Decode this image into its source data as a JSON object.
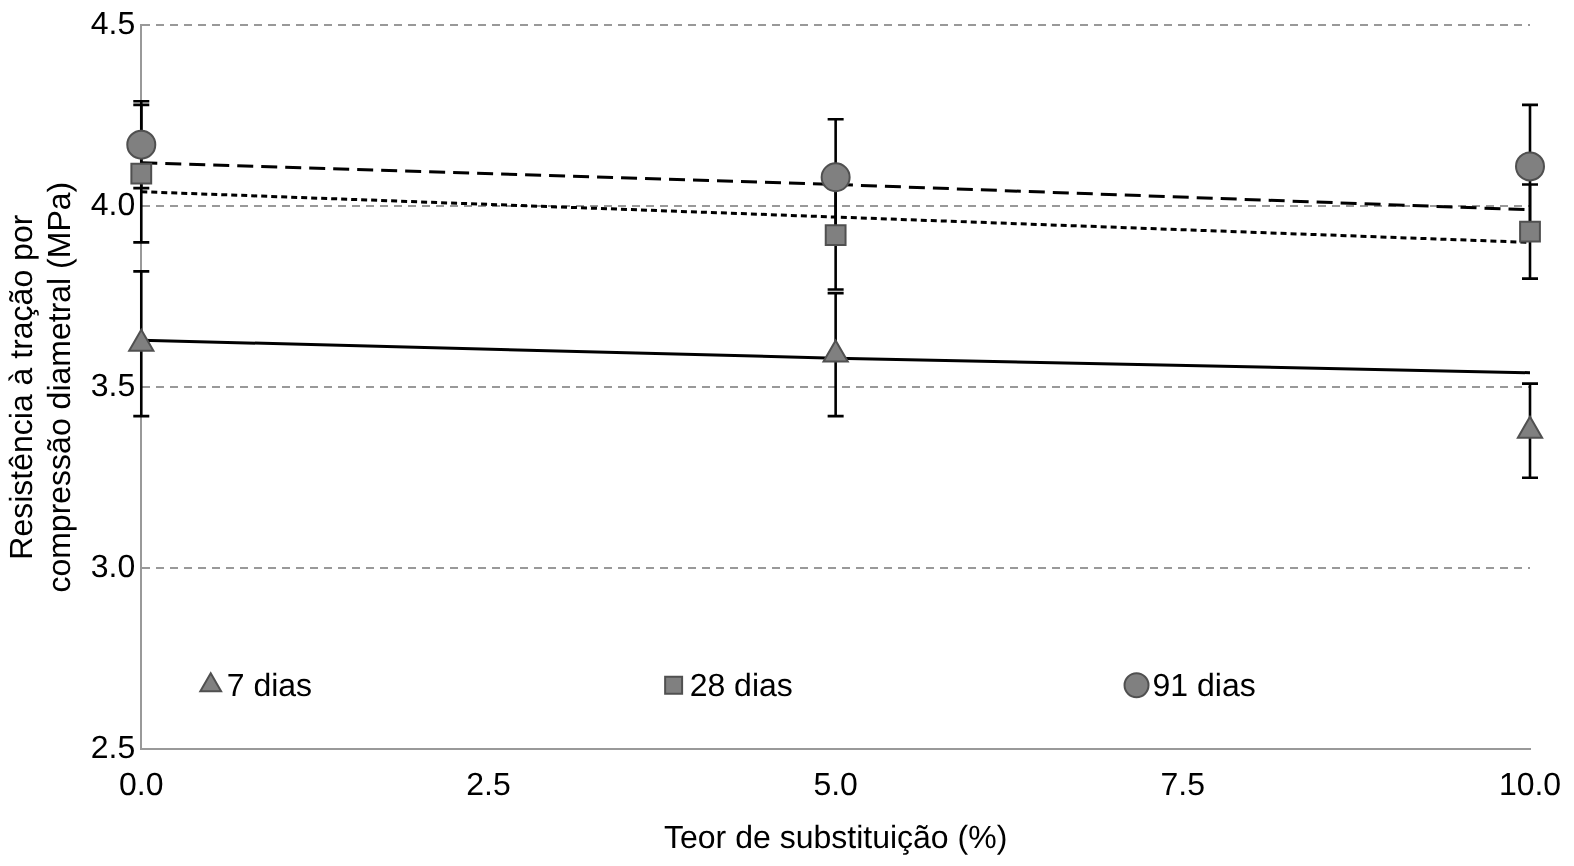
{
  "chart_data": {
    "type": "scatter",
    "xlabel": "Teor de substituição (%)",
    "ylabel": "Resistência à tração por\ncompressão diametral (MPa)",
    "x": [
      0,
      5,
      10
    ],
    "xlim": [
      0,
      10
    ],
    "xticks": [
      {
        "value": 0,
        "label": "0.0"
      },
      {
        "value": 2.5,
        "label": "2.5"
      },
      {
        "value": 5,
        "label": "5.0"
      },
      {
        "value": 7.5,
        "label": "7.5"
      },
      {
        "value": 10,
        "label": "10.0"
      }
    ],
    "ylim": [
      2.5,
      4.5
    ],
    "yticks": [
      {
        "value": 2.5,
        "label": "2.5"
      },
      {
        "value": 3,
        "label": "3.0"
      },
      {
        "value": 3.5,
        "label": "3.5"
      },
      {
        "value": 4,
        "label": "4.0"
      },
      {
        "value": 4.5,
        "label": "4.5"
      }
    ],
    "grid": "y",
    "legend": "bottom",
    "series": [
      {
        "name": "7 dias",
        "color": "#808080",
        "marker": "triangle",
        "values": [
          3.62,
          3.59,
          3.38
        ],
        "errors": [
          0.2,
          0.17,
          0.13
        ]
      },
      {
        "name": "28 dias",
        "color": "#808080",
        "marker": "square",
        "values": [
          4.09,
          3.92,
          3.93
        ],
        "errors": [
          0.19,
          0.15,
          0.13
        ]
      },
      {
        "name": "91 dias",
        "color": "#808080",
        "marker": "circle",
        "values": [
          4.17,
          4.08,
          4.11
        ],
        "errors": [
          0.12,
          0.16,
          0.17
        ]
      },
      {
        "type": "line",
        "color": "#000000",
        "line_style": "solid",
        "marker": "none",
        "values": [
          3.63,
          3.58,
          3.54
        ]
      },
      {
        "type": "line",
        "color": "#000000",
        "line_style": "dotted",
        "marker": "none",
        "values": [
          4.04,
          3.97,
          3.9
        ]
      },
      {
        "type": "line",
        "color": "#000000",
        "line_style": "dashed",
        "marker": "none",
        "values": [
          4.12,
          4.06,
          3.99
        ]
      }
    ]
  }
}
